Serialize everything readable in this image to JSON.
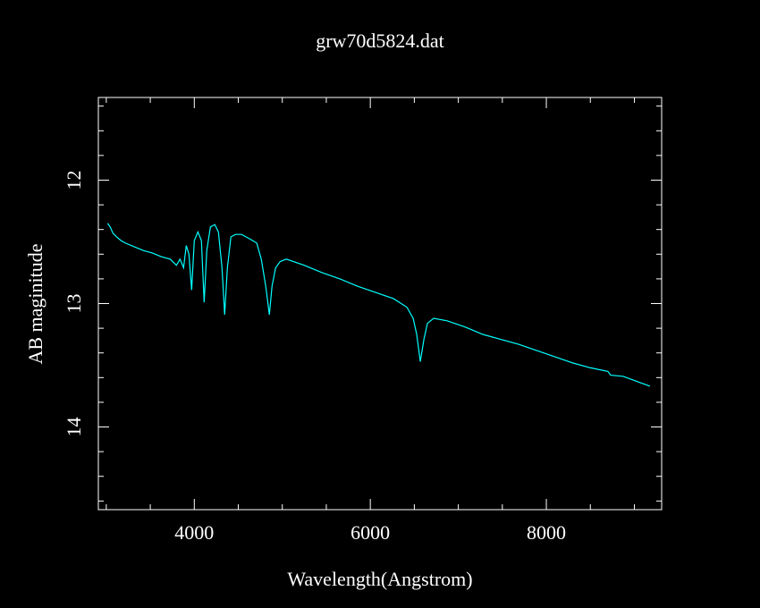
{
  "chart_data": {
    "type": "line",
    "title": "grw70d5824.dat",
    "x_label": "Wavelength(Angstrom)",
    "y_label": "AB maginitude",
    "xlim": [
      2910,
      9310
    ],
    "ylim": [
      11.33,
      14.67
    ],
    "y_inverted": true,
    "xticks": [
      4000,
      6000,
      8000
    ],
    "yticks": [
      12,
      13,
      14
    ],
    "xminorticks": [
      3000,
      3500,
      4500,
      5000,
      5500,
      6500,
      7000,
      7500,
      8500,
      9000
    ],
    "yminorticks": [
      11.4,
      11.6,
      11.8,
      12.2,
      12.4,
      12.6,
      12.8,
      13.2,
      13.4,
      13.6,
      13.8,
      14.2,
      14.4,
      14.6
    ],
    "color": "#00ffff",
    "x": [
      3015,
      3045,
      3076,
      3117,
      3168,
      3218,
      3320,
      3421,
      3523,
      3624,
      3726,
      3797,
      3838,
      3878,
      3909,
      3939,
      3970,
      4000,
      4041,
      4081,
      4112,
      4142,
      4183,
      4233,
      4274,
      4315,
      4345,
      4376,
      4416,
      4467,
      4538,
      4640,
      4710,
      4761,
      4812,
      4853,
      4883,
      4924,
      4975,
      5045,
      5249,
      5452,
      5655,
      5857,
      6060,
      6263,
      6416,
      6487,
      6527,
      6568,
      6609,
      6649,
      6720,
      6873,
      7076,
      7279,
      7482,
      7685,
      7888,
      8091,
      8294,
      8497,
      8700,
      8731,
      8873,
      9025,
      9177
    ],
    "values": [
      12.35,
      12.38,
      12.43,
      12.46,
      12.49,
      12.51,
      12.54,
      12.57,
      12.59,
      12.62,
      12.64,
      12.69,
      12.64,
      12.71,
      12.53,
      12.6,
      12.89,
      12.49,
      12.42,
      12.49,
      12.99,
      12.57,
      12.38,
      12.36,
      12.42,
      12.71,
      13.09,
      12.71,
      12.46,
      12.44,
      12.44,
      12.48,
      12.51,
      12.64,
      12.86,
      13.09,
      12.86,
      12.71,
      12.66,
      12.64,
      12.69,
      12.75,
      12.8,
      12.86,
      12.91,
      12.96,
      13.03,
      13.12,
      13.25,
      13.47,
      13.29,
      13.16,
      13.12,
      13.14,
      13.19,
      13.25,
      13.29,
      13.33,
      13.38,
      13.43,
      13.48,
      13.52,
      13.55,
      13.58,
      13.59,
      13.63,
      13.67
    ]
  }
}
